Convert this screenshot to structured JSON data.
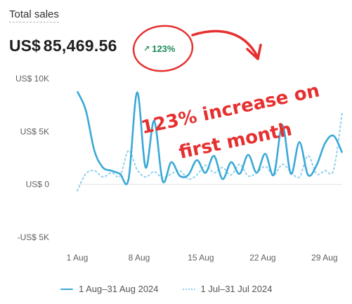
{
  "metric": {
    "title": "Total sales",
    "currency": "US$",
    "amount": "85,469.56",
    "delta": "123%",
    "delta_icon": "arrow-up-right-icon"
  },
  "annotation": {
    "line1": "123% increase on",
    "line2": "first month",
    "color": "#e63030"
  },
  "colors": {
    "current": "#3aa9d8",
    "previous": "#8fd0ea",
    "positive": "#1b8a58"
  },
  "chart_data": {
    "type": "line",
    "y_tick_labels": [
      "US$ 10K",
      "US$ 5K",
      "US$ 0",
      "-US$ 5K"
    ],
    "y_ticks": [
      10000,
      5000,
      0,
      -5000
    ],
    "ylim": [
      -5000,
      10000
    ],
    "x_tick_labels": [
      "1 Aug",
      "8 Aug",
      "15 Aug",
      "22 Aug",
      "29 Aug"
    ],
    "x_tick_days": [
      1,
      8,
      15,
      22,
      29
    ],
    "xlim": [
      1,
      31
    ],
    "series": [
      {
        "name": "1 Aug–31 Aug 2024",
        "style": "solid",
        "values": [
          8800,
          7000,
          3200,
          1600,
          1300,
          1000,
          500,
          8700,
          1600,
          6000,
          300,
          2100,
          800,
          900,
          2300,
          1100,
          2700,
          500,
          2100,
          1000,
          2800,
          1100,
          2900,
          900,
          5600,
          1000,
          4000,
          900,
          1800,
          3900,
          4600,
          3000
        ]
      },
      {
        "name": "1 Jul–31 Jul 2024",
        "style": "dotted",
        "values": [
          -600,
          1000,
          1300,
          700,
          1100,
          800,
          3200,
          1400,
          700,
          1200,
          600,
          1000,
          1300,
          500,
          900,
          1800,
          1100,
          1600,
          900,
          1900,
          800,
          1100,
          1700,
          900,
          1900,
          1200,
          700,
          2700,
          1000,
          1300,
          1400,
          6800
        ]
      }
    ]
  },
  "legend": {
    "current": "1 Aug–31 Aug 2024",
    "previous": "1 Jul–31 Jul 2024"
  }
}
